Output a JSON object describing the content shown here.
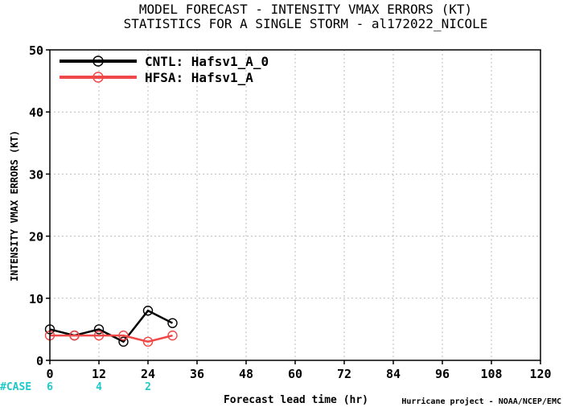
{
  "title_line1": "MODEL FORECAST - INTENSITY VMAX ERRORS (KT)",
  "title_line2": "STATISTICS FOR A SINGLE STORM - al172022_NICOLE",
  "case_label": "#CASE",
  "credit": "Hurricane project - NOAA/NCEP/EMC",
  "colors": {
    "cntl": "#000000",
    "hfsa": "#f04848",
    "case": "#1fc9c9",
    "grid": "#bbbbbb"
  },
  "chart_data": {
    "type": "line",
    "title": "MODEL FORECAST - INTENSITY VMAX ERRORS (KT)",
    "subtitle": "STATISTICS FOR A SINGLE STORM - al172022_NICOLE",
    "xlabel": "Forecast lead time (hr)",
    "ylabel": "INTENSITY VMAX ERRORS (KT)",
    "xlim": [
      0,
      120
    ],
    "ylim": [
      0,
      50
    ],
    "xticks": [
      0,
      12,
      24,
      36,
      48,
      60,
      72,
      84,
      96,
      108,
      120
    ],
    "yticks": [
      0,
      10,
      20,
      30,
      40,
      50
    ],
    "grid": true,
    "legend_position": "top-left",
    "series": [
      {
        "name": "CNTL: Hafsv1_A_0",
        "x": [
          0,
          6,
          12,
          18,
          24,
          30
        ],
        "y": [
          5,
          4,
          5,
          3,
          8,
          6
        ]
      },
      {
        "name": "HFSA: Hafsv1_A",
        "x": [
          0,
          6,
          12,
          18,
          24,
          30
        ],
        "y": [
          4,
          4,
          4,
          4,
          3,
          4
        ]
      }
    ],
    "cases": [
      {
        "x": 0,
        "count": "6"
      },
      {
        "x": 12,
        "count": "4"
      },
      {
        "x": 24,
        "count": "2"
      }
    ]
  }
}
